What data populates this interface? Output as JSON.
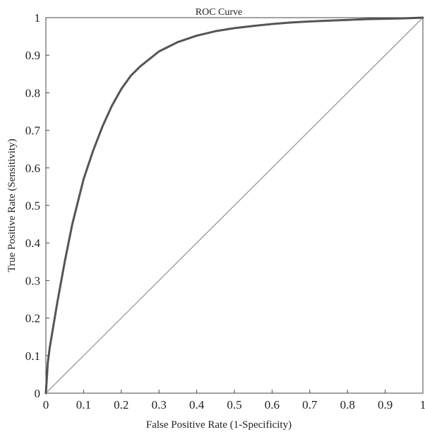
{
  "chart_data": {
    "type": "line",
    "title": "ROC Curve",
    "xlabel": "False Positive Rate (1-Specificity)",
    "ylabel": "True Positive Rate (Sensitivity)",
    "xlim": [
      0,
      1
    ],
    "ylim": [
      0,
      1
    ],
    "grid": false,
    "x_ticks": [
      0,
      0.1,
      0.2,
      0.3,
      0.4,
      0.5,
      0.6,
      0.7,
      0.8,
      0.9,
      1
    ],
    "y_ticks": [
      0,
      0.1,
      0.2,
      0.3,
      0.4,
      0.5,
      0.6,
      0.7,
      0.8,
      0.9,
      1
    ],
    "x_tick_labels": [
      "0",
      "0.1",
      "0.2",
      "0.3",
      "0.4",
      "0.5",
      "0.6",
      "0.7",
      "0.8",
      "0.9",
      "1"
    ],
    "y_tick_labels": [
      "0",
      "0.1",
      "0.2",
      "0.3",
      "0.4",
      "0.5",
      "0.6",
      "0.7",
      "0.8",
      "0.9",
      "1"
    ],
    "series": [
      {
        "color": "#555555",
        "x": [
          0,
          0.005,
          0.01,
          0.02,
          0.03,
          0.05,
          0.07,
          0.1,
          0.125,
          0.15,
          0.175,
          0.2,
          0.225,
          0.25,
          0.3,
          0.35,
          0.4,
          0.45,
          0.5,
          0.55,
          0.6,
          0.65,
          0.7,
          0.75,
          0.8,
          0.85,
          0.9,
          0.95,
          1
        ],
        "y": [
          0,
          0.08,
          0.12,
          0.18,
          0.24,
          0.35,
          0.45,
          0.57,
          0.645,
          0.71,
          0.765,
          0.81,
          0.845,
          0.87,
          0.91,
          0.935,
          0.952,
          0.964,
          0.972,
          0.978,
          0.983,
          0.987,
          0.99,
          0.992,
          0.994,
          0.996,
          0.997,
          0.998,
          1
        ]
      },
      {
        "color": "#999999",
        "x": [
          0,
          1
        ],
        "y": [
          0,
          1
        ]
      }
    ]
  }
}
